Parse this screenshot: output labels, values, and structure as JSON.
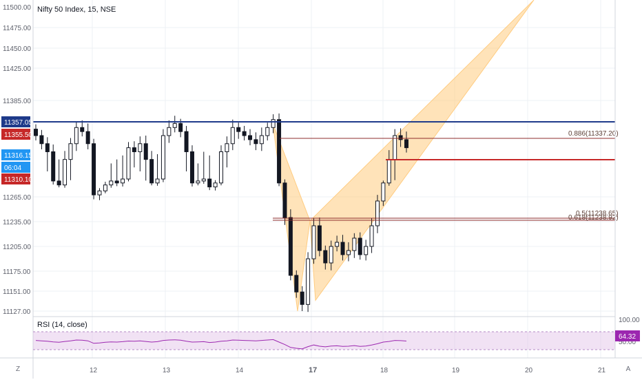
{
  "header": {
    "symbol_title": "Nifty 50 Index, 15, NSE",
    "rsi_title": "RSI (14, close)"
  },
  "price_axis": {
    "ticks": [
      "11500.00",
      "11475.00",
      "11450.00",
      "11425.00",
      "11385.00",
      "11357.05",
      "11355.50",
      "11316.15",
      "06:04",
      "11310.10",
      "11265.00",
      "11235.00",
      "11205.00",
      "11175.00",
      "11151.00",
      "11127.00"
    ],
    "badges": [
      {
        "label": "11357.05",
        "color": "#1e3a8a"
      },
      {
        "label": "11355.50",
        "color": "#c62828"
      },
      {
        "label": "11316.15",
        "color": "#2196f3"
      },
      {
        "label": "06:04",
        "color": "#2196f3"
      },
      {
        "label": "11310.10",
        "color": "#c62828"
      }
    ]
  },
  "rsi_axis": {
    "ticks": [
      "100.00",
      "50.00"
    ],
    "value_badge": "64.32",
    "badge_color": "#9c27b0"
  },
  "time_axis": {
    "labels": [
      "12",
      "13",
      "14",
      "17",
      "18",
      "19",
      "20",
      "21"
    ],
    "bold_label": "17"
  },
  "fib_labels": {
    "level_886": "0.886(11337.20)",
    "level_5": "0.5(11238.65)",
    "level_618": "0.618(11238.92)"
  },
  "corner_buttons": {
    "left": "Z",
    "right": "A"
  },
  "colors": {
    "up": "#ffffff",
    "down": "#131722",
    "hline_blue": "#1e3a8a",
    "hline_red": "#c62828",
    "pattern_fill": "#ffcc80",
    "rsi_line": "#9c27b0",
    "rsi_band": "#e1bee7"
  },
  "chart_data": {
    "type": "candlestick",
    "x_labels": [
      "12",
      "13",
      "14",
      "17",
      "18",
      "19",
      "20",
      "21"
    ],
    "close_series": [
      11340,
      11330,
      11320,
      11305,
      11295,
      11315,
      11330,
      11350,
      11345,
      11330,
      11270,
      11280,
      11295,
      11305,
      11300,
      11310,
      11325,
      11320,
      11330,
      11315,
      11300,
      11310,
      11340,
      11350,
      11355,
      11345,
      11320,
      11300,
      11305,
      11310,
      11290,
      11300,
      11320,
      11330,
      11350,
      11345,
      11340,
      11335,
      11330,
      11340,
      11350,
      11360,
      11300,
      11240,
      11170,
      11150,
      11135,
      11190,
      11230,
      11200,
      11185,
      11205,
      11210,
      11195,
      11200,
      11215,
      11195,
      11205,
      11230,
      11260,
      11300,
      11315,
      11340,
      11335,
      11325
    ],
    "hlines": [
      11357.05,
      11310.1
    ],
    "fib_levels": [
      {
        "ratio": 0.886,
        "value": 11337.2
      },
      {
        "ratio": 0.5,
        "value": 11238.65
      },
      {
        "ratio": 0.618,
        "value": 11238.92
      }
    ],
    "rsi_last": 64.32,
    "y_range": [
      11127,
      11500
    ]
  }
}
